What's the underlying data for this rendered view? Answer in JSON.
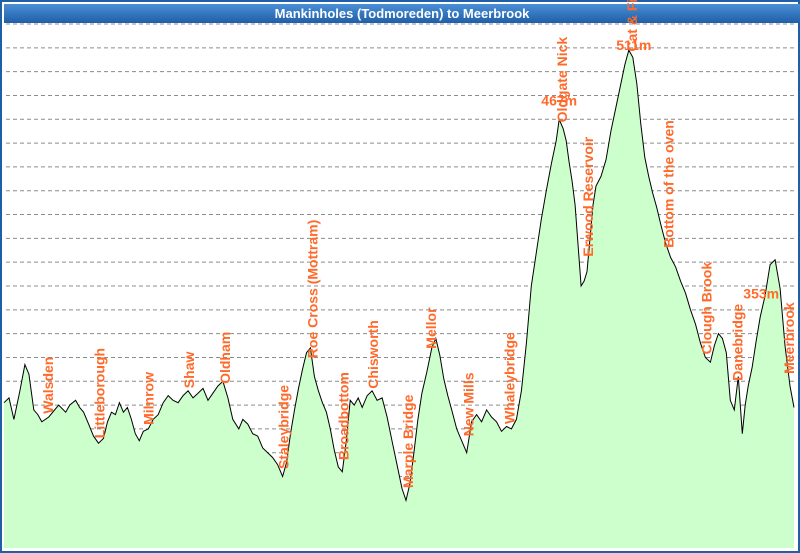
{
  "chart_data": {
    "type": "area",
    "title": "Mankinholes (Todmoreden) to Meerbrook",
    "xlabel": "",
    "ylabel": "",
    "grid": true,
    "colors": {
      "fill": "#ccffcc",
      "line": "#000000",
      "grid": "#8c8c8c",
      "labels": "#ff6a2a",
      "title_bar": "#2b6cb8"
    },
    "profile": [
      [
        0,
        62
      ],
      [
        5,
        66
      ],
      [
        10,
        48
      ],
      [
        16,
        72
      ],
      [
        21,
        94
      ],
      [
        25,
        86
      ],
      [
        30,
        56
      ],
      [
        34,
        52
      ],
      [
        38,
        46
      ],
      [
        45,
        50
      ],
      [
        50,
        55
      ],
      [
        55,
        60
      ],
      [
        62,
        54
      ],
      [
        66,
        60
      ],
      [
        72,
        64
      ],
      [
        76,
        58
      ],
      [
        80,
        54
      ],
      [
        85,
        44
      ],
      [
        90,
        34
      ],
      [
        95,
        28
      ],
      [
        100,
        32
      ],
      [
        104,
        46
      ],
      [
        108,
        54
      ],
      [
        112,
        52
      ],
      [
        116,
        62
      ],
      [
        120,
        54
      ],
      [
        124,
        58
      ],
      [
        128,
        48
      ],
      [
        132,
        36
      ],
      [
        136,
        30
      ],
      [
        140,
        38
      ],
      [
        145,
        40
      ],
      [
        150,
        48
      ],
      [
        155,
        52
      ],
      [
        160,
        62
      ],
      [
        165,
        68
      ],
      [
        170,
        64
      ],
      [
        175,
        62
      ],
      [
        180,
        68
      ],
      [
        185,
        72
      ],
      [
        190,
        66
      ],
      [
        195,
        70
      ],
      [
        200,
        74
      ],
      [
        205,
        64
      ],
      [
        210,
        70
      ],
      [
        215,
        76
      ],
      [
        220,
        80
      ],
      [
        225,
        66
      ],
      [
        230,
        48
      ],
      [
        236,
        40
      ],
      [
        240,
        48
      ],
      [
        245,
        44
      ],
      [
        250,
        36
      ],
      [
        255,
        34
      ],
      [
        260,
        24
      ],
      [
        265,
        20
      ],
      [
        270,
        16
      ],
      [
        275,
        10
      ],
      [
        280,
        0
      ],
      [
        284,
        12
      ],
      [
        288,
        36
      ],
      [
        292,
        56
      ],
      [
        296,
        74
      ],
      [
        300,
        90
      ],
      [
        304,
        104
      ],
      [
        308,
        108
      ],
      [
        312,
        84
      ],
      [
        316,
        72
      ],
      [
        320,
        62
      ],
      [
        324,
        54
      ],
      [
        328,
        40
      ],
      [
        332,
        22
      ],
      [
        336,
        8
      ],
      [
        340,
        4
      ],
      [
        344,
        30
      ],
      [
        348,
        64
      ],
      [
        352,
        60
      ],
      [
        356,
        66
      ],
      [
        360,
        58
      ],
      [
        365,
        68
      ],
      [
        370,
        72
      ],
      [
        375,
        64
      ],
      [
        380,
        66
      ],
      [
        385,
        50
      ],
      [
        390,
        30
      ],
      [
        395,
        10
      ],
      [
        400,
        -10
      ],
      [
        404,
        -20
      ],
      [
        408,
        -6
      ],
      [
        412,
        20
      ],
      [
        416,
        48
      ],
      [
        420,
        70
      ],
      [
        425,
        88
      ],
      [
        430,
        108
      ],
      [
        434,
        116
      ],
      [
        438,
        102
      ],
      [
        442,
        82
      ],
      [
        446,
        68
      ],
      [
        450,
        56
      ],
      [
        455,
        40
      ],
      [
        460,
        30
      ],
      [
        465,
        20
      ],
      [
        470,
        46
      ],
      [
        475,
        52
      ],
      [
        480,
        46
      ],
      [
        485,
        56
      ],
      [
        490,
        50
      ],
      [
        495,
        46
      ],
      [
        500,
        38
      ],
      [
        505,
        42
      ],
      [
        510,
        40
      ],
      [
        515,
        48
      ],
      [
        520,
        72
      ],
      [
        525,
        112
      ],
      [
        530,
        160
      ],
      [
        535,
        188
      ],
      [
        540,
        216
      ],
      [
        545,
        240
      ],
      [
        550,
        262
      ],
      [
        555,
        282
      ],
      [
        558,
        300
      ],
      [
        562,
        292
      ],
      [
        565,
        282
      ],
      [
        568,
        264
      ],
      [
        571,
        248
      ],
      [
        574,
        228
      ],
      [
        577,
        194
      ],
      [
        580,
        160
      ],
      [
        583,
        164
      ],
      [
        586,
        172
      ],
      [
        589,
        200
      ],
      [
        592,
        228
      ],
      [
        595,
        244
      ],
      [
        600,
        252
      ],
      [
        605,
        266
      ],
      [
        610,
        290
      ],
      [
        615,
        310
      ],
      [
        620,
        330
      ],
      [
        624,
        346
      ],
      [
        628,
        358
      ],
      [
        632,
        352
      ],
      [
        636,
        330
      ],
      [
        640,
        296
      ],
      [
        644,
        268
      ],
      [
        648,
        252
      ],
      [
        652,
        238
      ],
      [
        656,
        226
      ],
      [
        660,
        212
      ],
      [
        665,
        196
      ],
      [
        670,
        184
      ],
      [
        675,
        176
      ],
      [
        680,
        164
      ],
      [
        685,
        154
      ],
      [
        690,
        140
      ],
      [
        695,
        128
      ],
      [
        700,
        112
      ],
      [
        705,
        100
      ],
      [
        710,
        96
      ],
      [
        714,
        110
      ],
      [
        718,
        120
      ],
      [
        722,
        116
      ],
      [
        726,
        104
      ],
      [
        730,
        64
      ],
      [
        734,
        56
      ],
      [
        738,
        84
      ],
      [
        742,
        36
      ],
      [
        745,
        60
      ],
      [
        748,
        76
      ],
      [
        752,
        92
      ],
      [
        756,
        114
      ],
      [
        760,
        134
      ],
      [
        765,
        152
      ],
      [
        770,
        178
      ],
      [
        775,
        182
      ],
      [
        780,
        158
      ],
      [
        785,
        110
      ],
      [
        790,
        76
      ],
      [
        794,
        58
      ]
    ],
    "x_range": [
      0,
      794
    ],
    "y_range": [
      -60,
      380
    ],
    "grid_y": [
      -40,
      -20,
      0,
      20,
      40,
      60,
      80,
      100,
      120,
      140,
      160,
      180,
      200,
      220,
      240,
      260,
      280,
      300,
      320,
      340,
      360,
      380
    ],
    "places": [
      {
        "name": "Walsden",
        "x": 44
      },
      {
        "name": "Littleborough",
        "x": 96
      },
      {
        "name": "Milnrow",
        "x": 145
      },
      {
        "name": "Shaw",
        "x": 186
      },
      {
        "name": "Oldham",
        "x": 222
      },
      {
        "name": "Staleybridge",
        "x": 281
      },
      {
        "name": "Roe Cross (Mottram)",
        "x": 310
      },
      {
        "name": "Broadbottom",
        "x": 341
      },
      {
        "name": "Chisworth",
        "x": 371
      },
      {
        "name": "Marple Bridge",
        "x": 406
      },
      {
        "name": "Mellor",
        "x": 429
      },
      {
        "name": "New Mills",
        "x": 467
      },
      {
        "name": "Whaleybridge",
        "x": 508
      },
      {
        "name": "Oldgate Nick",
        "x": 561
      },
      {
        "name": "Erwood Reservoir",
        "x": 587
      },
      {
        "name": "Cat & Fiddle",
        "x": 631
      },
      {
        "name": "Bottom of the oven",
        "x": 668
      },
      {
        "name": "Clough Brook",
        "x": 706
      },
      {
        "name": "Danebridge",
        "x": 737
      },
      {
        "name": "Meerbrook",
        "x": 789
      }
    ],
    "peaks": [
      {
        "label": "467m",
        "x": 558
      },
      {
        "label": "511m",
        "x": 633
      },
      {
        "label": "353m",
        "x": 761
      }
    ]
  }
}
